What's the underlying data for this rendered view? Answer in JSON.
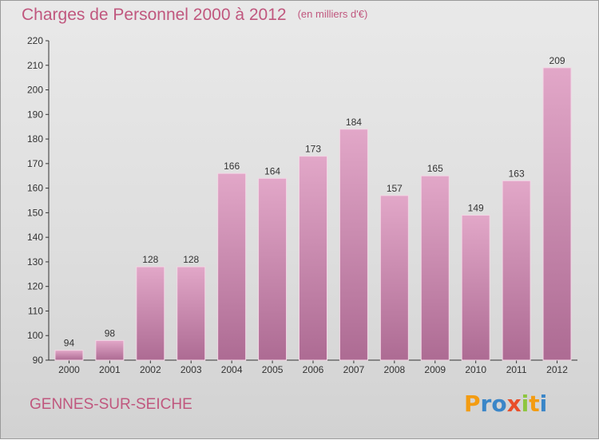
{
  "header": {
    "title": "Charges de Personnel 2000 à 2012",
    "unit": "(en milliers d'€)"
  },
  "footer": {
    "city": "GENNES-SUR-SEICHE",
    "logo": [
      "P",
      "r",
      "o",
      "x",
      "i",
      "t",
      "i"
    ],
    "logo_colors": [
      "#f39c12",
      "#3a86c8",
      "#3a86c8",
      "#e94f2a",
      "#8dc63f",
      "#f39c12",
      "#3a86c8"
    ]
  },
  "colors": {
    "title": "#c0577e",
    "bar_top": "#e2a7c8",
    "bar_bottom": "#ad6b93",
    "axis": "#333333"
  },
  "chart_data": {
    "type": "bar",
    "title": "Charges de Personnel 2000 à 2012",
    "subtitle": "(en milliers d'€)",
    "categories": [
      "2000",
      "2001",
      "2002",
      "2003",
      "2004",
      "2005",
      "2006",
      "2007",
      "2008",
      "2009",
      "2010",
      "2011",
      "2012"
    ],
    "values": [
      94,
      98,
      128,
      128,
      166,
      164,
      173,
      184,
      157,
      165,
      149,
      163,
      209
    ],
    "ylim": [
      90,
      220
    ],
    "yticks": [
      90,
      100,
      110,
      120,
      130,
      140,
      150,
      160,
      170,
      180,
      190,
      200,
      210,
      220
    ],
    "grid": false,
    "legend": "none"
  }
}
